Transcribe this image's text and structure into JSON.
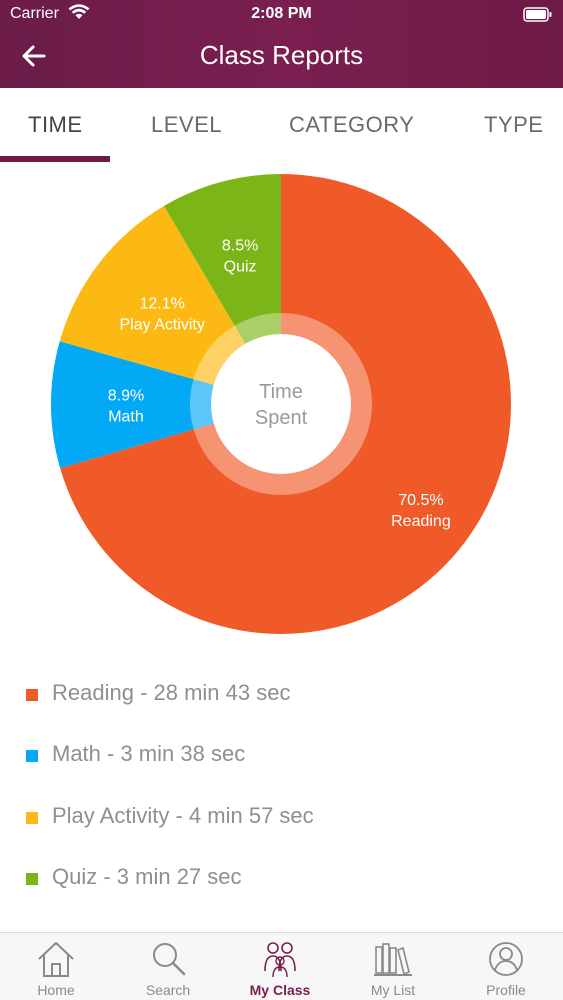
{
  "status_bar": {
    "carrier": "Carrier",
    "time": "2:08 PM"
  },
  "header": {
    "title": "Class Reports"
  },
  "tabs": [
    {
      "label": "TIME",
      "active": true
    },
    {
      "label": "LEVEL",
      "active": false
    },
    {
      "label": "CATEGORY",
      "active": false
    },
    {
      "label": "TYPE",
      "active": false
    }
  ],
  "chart_data": {
    "type": "pie",
    "center_label_line1": "Time",
    "center_label_line2": "Spent",
    "categories": [
      "Reading",
      "Math",
      "Play Activity",
      "Quiz"
    ],
    "values": [
      70.5,
      8.9,
      12.1,
      8.5
    ],
    "labels": [
      "70.5%",
      "8.9%",
      "12.1%",
      "8.5%"
    ],
    "colors": [
      "#f05a28",
      "#03a9f4",
      "#fdb913",
      "#7cb518"
    ]
  },
  "legend": [
    {
      "label": "Reading - 28 min 43 sec",
      "color": "#f05a28"
    },
    {
      "label": "Math - 3 min 38 sec",
      "color": "#03a9f4"
    },
    {
      "label": "Play Activity - 4 min 57 sec",
      "color": "#fdb913"
    },
    {
      "label": "Quiz - 3 min 27 sec",
      "color": "#7cb518"
    }
  ],
  "tabbar": [
    {
      "label": "Home",
      "icon": "home-icon",
      "active": false
    },
    {
      "label": "Search",
      "icon": "search-icon",
      "active": false
    },
    {
      "label": "My Class",
      "icon": "class-icon",
      "active": true
    },
    {
      "label": "My List",
      "icon": "books-icon",
      "active": false
    },
    {
      "label": "Profile",
      "icon": "profile-icon",
      "active": false
    }
  ]
}
